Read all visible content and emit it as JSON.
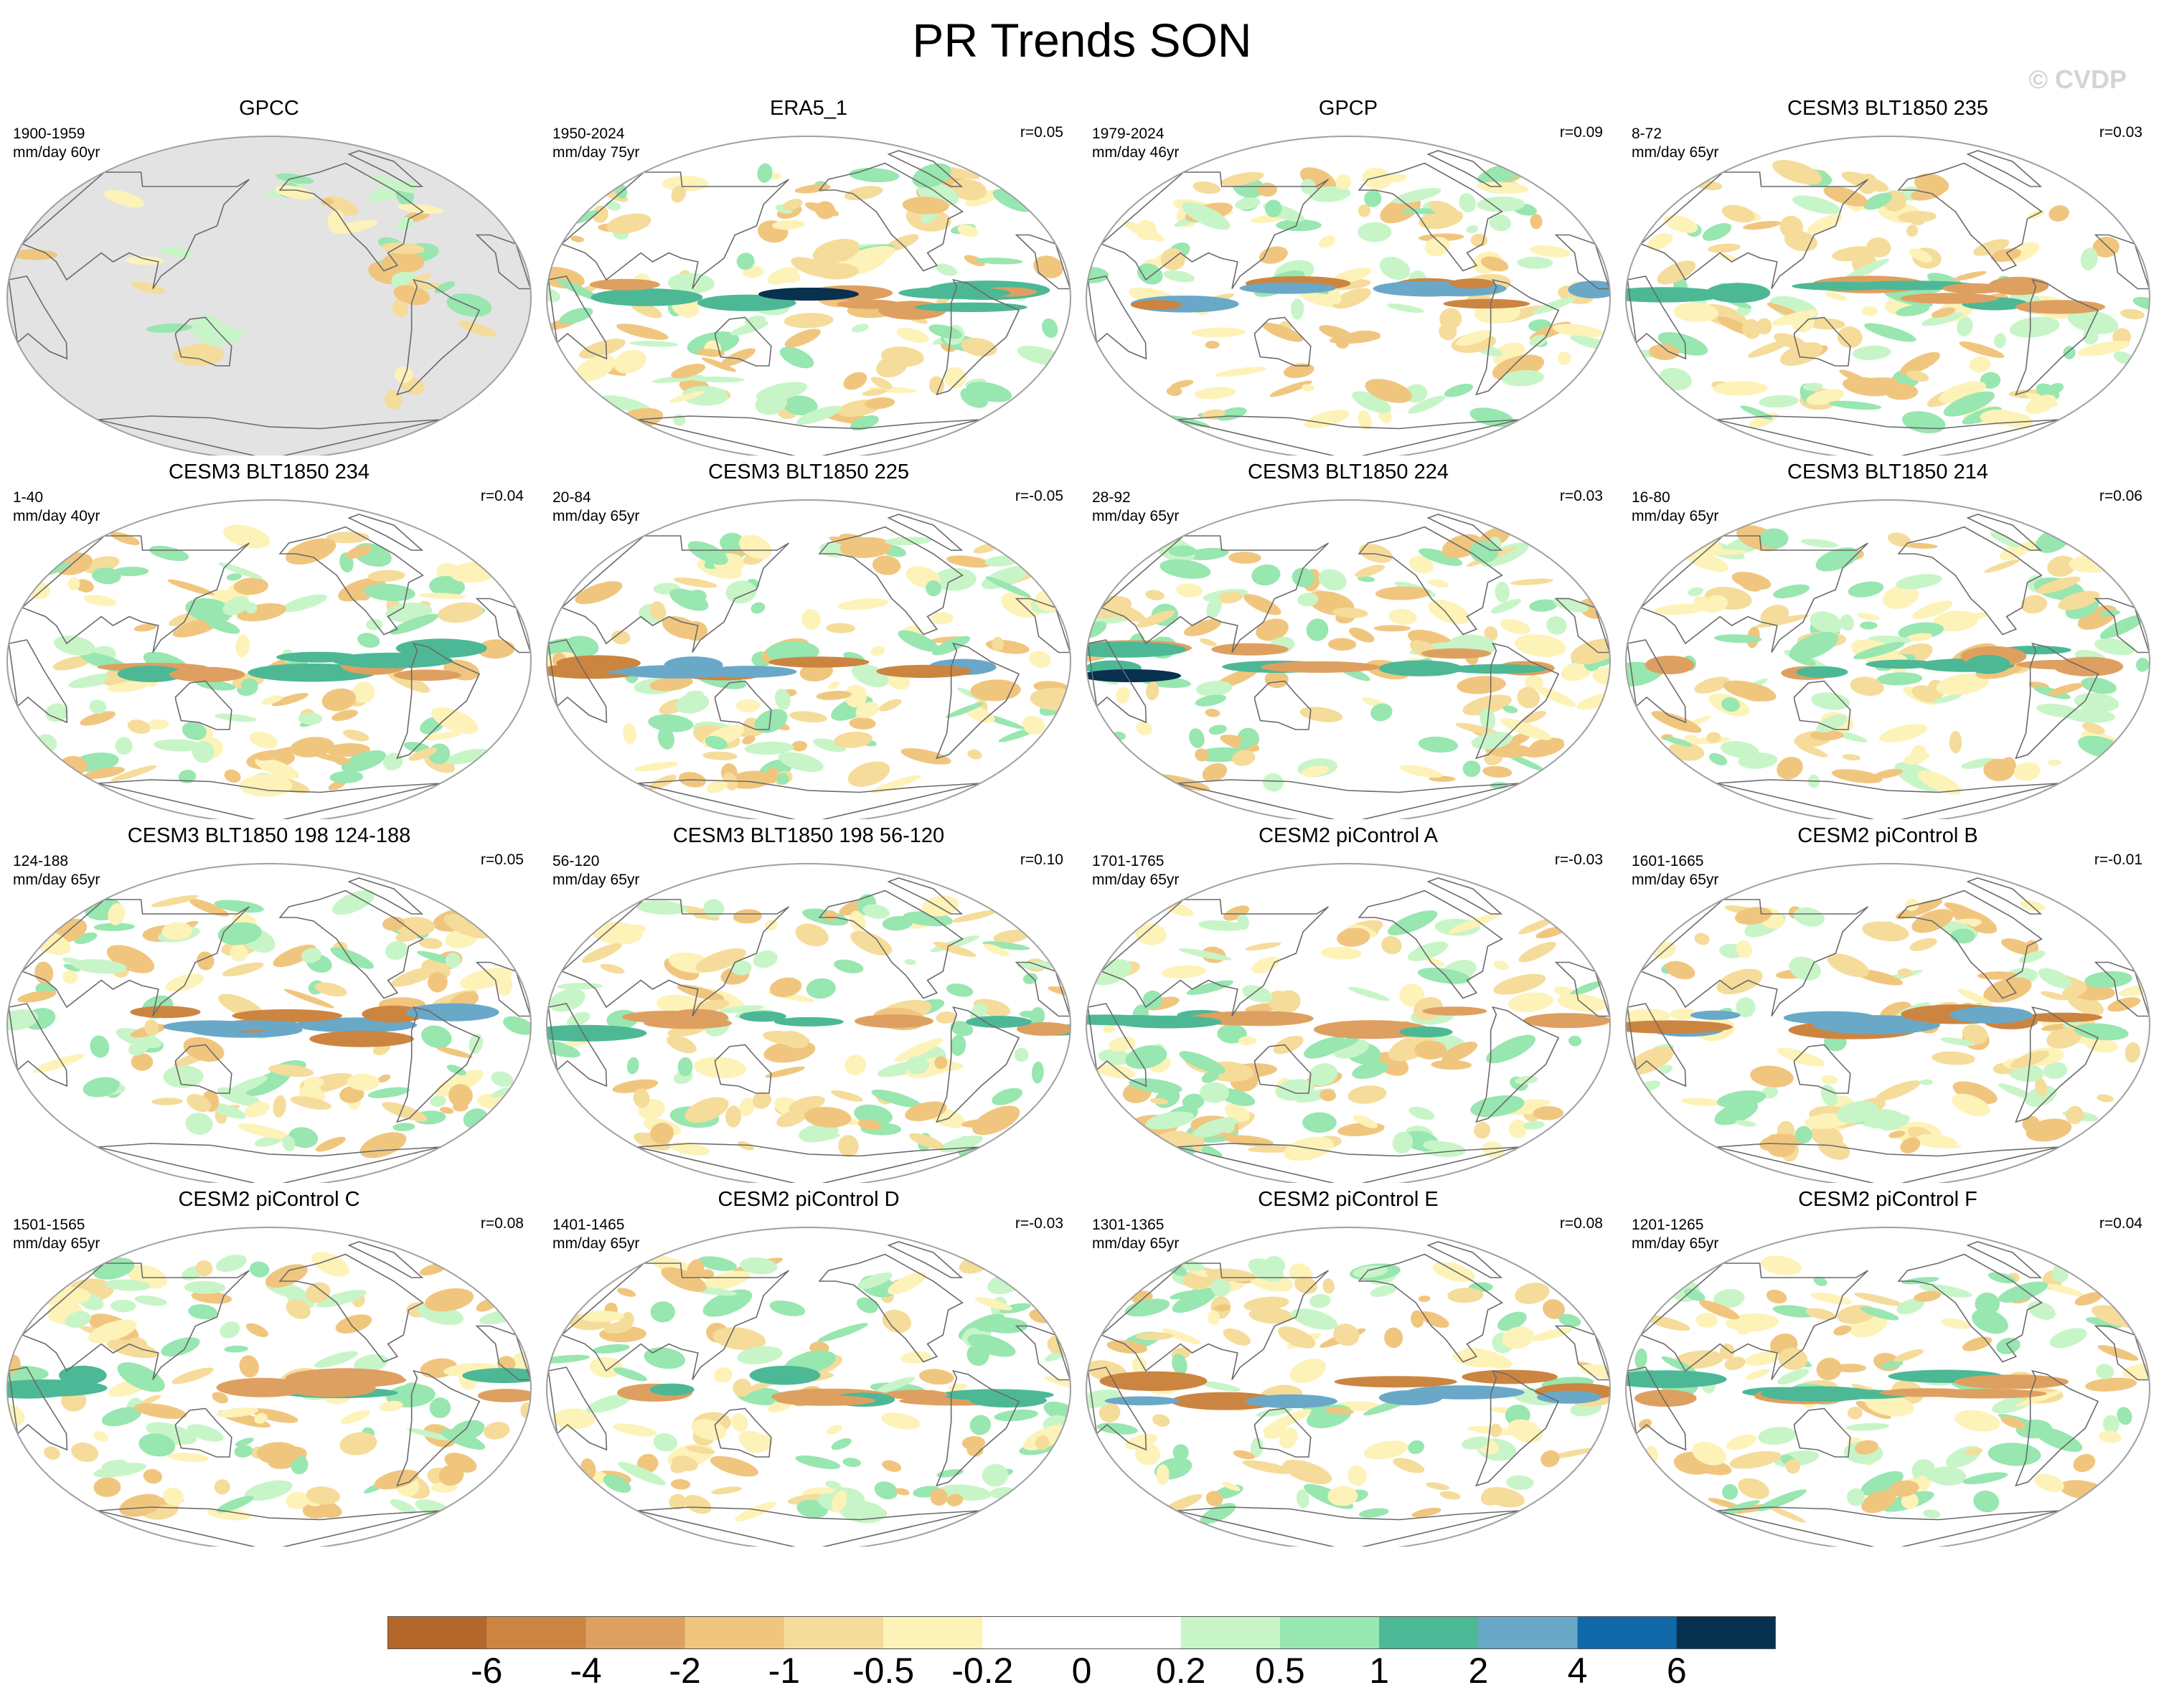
{
  "title": "PR Trends SON",
  "watermark": "© CVDP",
  "panels": [
    {
      "title": "GPCC",
      "years": "1900-1959",
      "units": "mm/day 60yr",
      "r": ""
    },
    {
      "title": "ERA5_1",
      "years": "1950-2024",
      "units": "mm/day 75yr",
      "r": "r=0.05"
    },
    {
      "title": "GPCP",
      "years": "1979-2024",
      "units": "mm/day 46yr",
      "r": "r=0.09"
    },
    {
      "title": "CESM3 BLT1850 235",
      "years": "8-72",
      "units": "mm/day 65yr",
      "r": "r=0.03"
    },
    {
      "title": "CESM3 BLT1850 234",
      "years": "1-40",
      "units": "mm/day 40yr",
      "r": "r=0.04"
    },
    {
      "title": "CESM3 BLT1850 225",
      "years": "20-84",
      "units": "mm/day 65yr",
      "r": "r=-0.05"
    },
    {
      "title": "CESM3 BLT1850 224",
      "years": "28-92",
      "units": "mm/day 65yr",
      "r": "r=0.03"
    },
    {
      "title": "CESM3 BLT1850 214",
      "years": "16-80",
      "units": "mm/day 65yr",
      "r": "r=0.06"
    },
    {
      "title": "CESM3 BLT1850 198 124-188",
      "years": "124-188",
      "units": "mm/day 65yr",
      "r": "r=0.05"
    },
    {
      "title": "CESM3 BLT1850 198 56-120",
      "years": "56-120",
      "units": "mm/day 65yr",
      "r": "r=0.10"
    },
    {
      "title": "CESM2 piControl A",
      "years": "1701-1765",
      "units": "mm/day 65yr",
      "r": "r=-0.03"
    },
    {
      "title": "CESM2 piControl B",
      "years": "1601-1665",
      "units": "mm/day 65yr",
      "r": "r=-0.01"
    },
    {
      "title": "CESM2 piControl C",
      "years": "1501-1565",
      "units": "mm/day 65yr",
      "r": "r=0.08"
    },
    {
      "title": "CESM2 piControl D",
      "years": "1401-1465",
      "units": "mm/day 65yr",
      "r": "r=-0.03"
    },
    {
      "title": "CESM2 piControl E",
      "years": "1301-1365",
      "units": "mm/day 65yr",
      "r": "r=0.08"
    },
    {
      "title": "CESM2 piControl F",
      "years": "1201-1265",
      "units": "mm/day 65yr",
      "r": "r=0.04"
    }
  ],
  "colorbar": {
    "labels": [
      "-6",
      "-4",
      "-2",
      "-1",
      "-0.5",
      "-0.2",
      "0",
      "0.2",
      "0.5",
      "1",
      "2",
      "4",
      "6"
    ],
    "colors": [
      "#b3672a",
      "#cc8540",
      "#dea060",
      "#f0c67f",
      "#f5dc9a",
      "#fdf2b8",
      "#ffffff",
      "#ffffff",
      "#c8f5c8",
      "#98e6b0",
      "#4db896",
      "#6aa8c8",
      "#1068a8",
      "#08304f"
    ]
  },
  "map_colors": {
    "ocean_mask": "#e3e3e3",
    "coast": "#6a6a6a",
    "border": "#a0a0a0"
  }
}
